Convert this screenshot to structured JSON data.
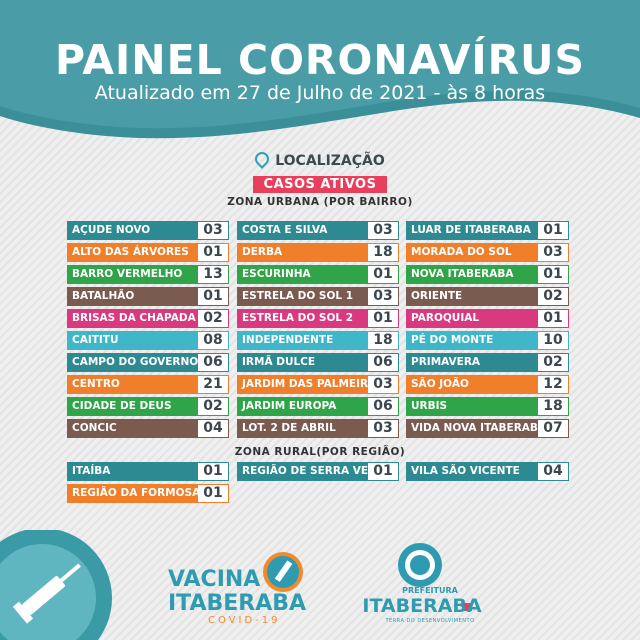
{
  "header": {
    "title": "PAINEL CORONAVÍRUS",
    "subtitle": "Atualizado em 27 de Julho de 2021 - às 8 horas"
  },
  "section": {
    "location_label": "LOCALIZAÇÃO",
    "active_cases_label": "CASOS ATIVOS",
    "urban_zone_label": "ZONA URBANA (POR BAIRRO)",
    "rural_zone_label": "ZONA RURAL(POR REGIÃO)"
  },
  "colors": {
    "teal": "#2e8a92",
    "orange": "#f07f2b",
    "green": "#2fa448",
    "brown": "#7b5a50",
    "pink": "#d9397f",
    "light_blue": "#3fb7c9",
    "red": "#e8405c"
  },
  "urban": [
    [
      {
        "name": "AÇUDE NOVO",
        "value": "03",
        "color": "teal"
      },
      {
        "name": "ALTO DAS ÁRVORES",
        "value": "01",
        "color": "orange"
      },
      {
        "name": "BARRO VERMELHO",
        "value": "13",
        "color": "green"
      },
      {
        "name": "BATALHÃO",
        "value": "01",
        "color": "brown"
      },
      {
        "name": "BRISAS DA CHAPADA",
        "value": "02",
        "color": "pink"
      },
      {
        "name": "CAITITU",
        "value": "08",
        "color": "light_blue"
      },
      {
        "name": "CAMPO DO GOVERNO",
        "value": "06",
        "color": "teal"
      },
      {
        "name": "CENTRO",
        "value": "21",
        "color": "orange"
      },
      {
        "name": "CIDADE DE DEUS",
        "value": "02",
        "color": "green"
      },
      {
        "name": "CONCIC",
        "value": "04",
        "color": "brown"
      }
    ],
    [
      {
        "name": "COSTA E SILVA",
        "value": "03",
        "color": "teal"
      },
      {
        "name": "DERBA",
        "value": "18",
        "color": "orange"
      },
      {
        "name": "ESCURINHA",
        "value": "01",
        "color": "green"
      },
      {
        "name": "ESTRELA DO SOL 1",
        "value": "03",
        "color": "brown"
      },
      {
        "name": "ESTRELA DO SOL 2",
        "value": "01",
        "color": "pink"
      },
      {
        "name": "INDEPENDENTE",
        "value": "18",
        "color": "light_blue"
      },
      {
        "name": "IRMÃ DULCE",
        "value": "06",
        "color": "teal"
      },
      {
        "name": "JARDIM DAS PALMEIRAS",
        "value": "03",
        "color": "orange"
      },
      {
        "name": "JARDIM EUROPA",
        "value": "06",
        "color": "green"
      },
      {
        "name": "LOT. 2 DE ABRIL",
        "value": "03",
        "color": "brown"
      }
    ],
    [
      {
        "name": "LUAR DE ITABERABA",
        "value": "01",
        "color": "teal"
      },
      {
        "name": "MORADA DO SOL",
        "value": "03",
        "color": "orange"
      },
      {
        "name": "NOVA ITABERABA",
        "value": "01",
        "color": "green"
      },
      {
        "name": "ORIENTE",
        "value": "02",
        "color": "brown"
      },
      {
        "name": "PAROQUIAL",
        "value": "01",
        "color": "pink"
      },
      {
        "name": "PÉ DO MONTE",
        "value": "10",
        "color": "light_blue"
      },
      {
        "name": "PRIMAVERA",
        "value": "02",
        "color": "teal"
      },
      {
        "name": "SÃO JOÃO",
        "value": "12",
        "color": "orange"
      },
      {
        "name": "URBIS",
        "value": "18",
        "color": "green"
      },
      {
        "name": "VIDA NOVA ITABERABA",
        "value": "07",
        "color": "brown"
      }
    ]
  ],
  "rural": [
    [
      {
        "name": "ITAÍBA",
        "value": "01",
        "color": "teal"
      },
      {
        "name": "REGIÃO DA FORMOSA",
        "value": "01",
        "color": "orange"
      }
    ],
    [
      {
        "name": "REGIÃO DE SERRA VERDE",
        "value": "01",
        "color": "teal"
      }
    ],
    [
      {
        "name": "VILA SÃO VICENTE",
        "value": "04",
        "color": "teal"
      }
    ]
  ],
  "footer": {
    "vaccine_logo_line1": "VACINA",
    "vaccine_logo_line2": "ITABERABA",
    "vaccine_logo_line3": "COVID-19",
    "prefeitura_label": "PREFEITURA",
    "city_name": "ITABERABA",
    "tagline": "TERRA DO DESENVOLVIMENTO"
  }
}
